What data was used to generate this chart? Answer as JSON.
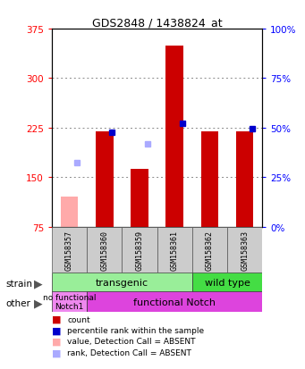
{
  "title": "GDS2848 / 1438824_at",
  "samples": [
    "GSM158357",
    "GSM158360",
    "GSM158359",
    "GSM158361",
    "GSM158362",
    "GSM158363"
  ],
  "count_values": [
    null,
    220,
    162,
    350,
    220,
    220
  ],
  "count_absent": [
    120,
    null,
    null,
    null,
    null,
    null
  ],
  "rank_values": [
    null,
    218,
    null,
    232,
    null,
    224
  ],
  "rank_absent": [
    172,
    null,
    200,
    null,
    null,
    null
  ],
  "ylim_left": [
    75,
    375
  ],
  "ylim_right": [
    0,
    100
  ],
  "yticks_left": [
    75,
    150,
    225,
    300,
    375
  ],
  "yticks_right": [
    0,
    25,
    50,
    75,
    100
  ],
  "bar_color_present": "#cc0000",
  "bar_color_absent": "#ffaaaa",
  "rank_color_present": "#0000cc",
  "rank_color_absent": "#aaaaff",
  "grid_color": "#888888",
  "strain_transgenic_color": "#99ee99",
  "strain_wildtype_color": "#44dd44",
  "other_nofunc_color": "#ee88ee",
  "other_func_color": "#dd44dd",
  "legend_items": [
    {
      "label": "count",
      "color": "#cc0000"
    },
    {
      "label": "percentile rank within the sample",
      "color": "#0000cc"
    },
    {
      "label": "value, Detection Call = ABSENT",
      "color": "#ffaaaa"
    },
    {
      "label": "rank, Detection Call = ABSENT",
      "color": "#aaaaff"
    }
  ]
}
